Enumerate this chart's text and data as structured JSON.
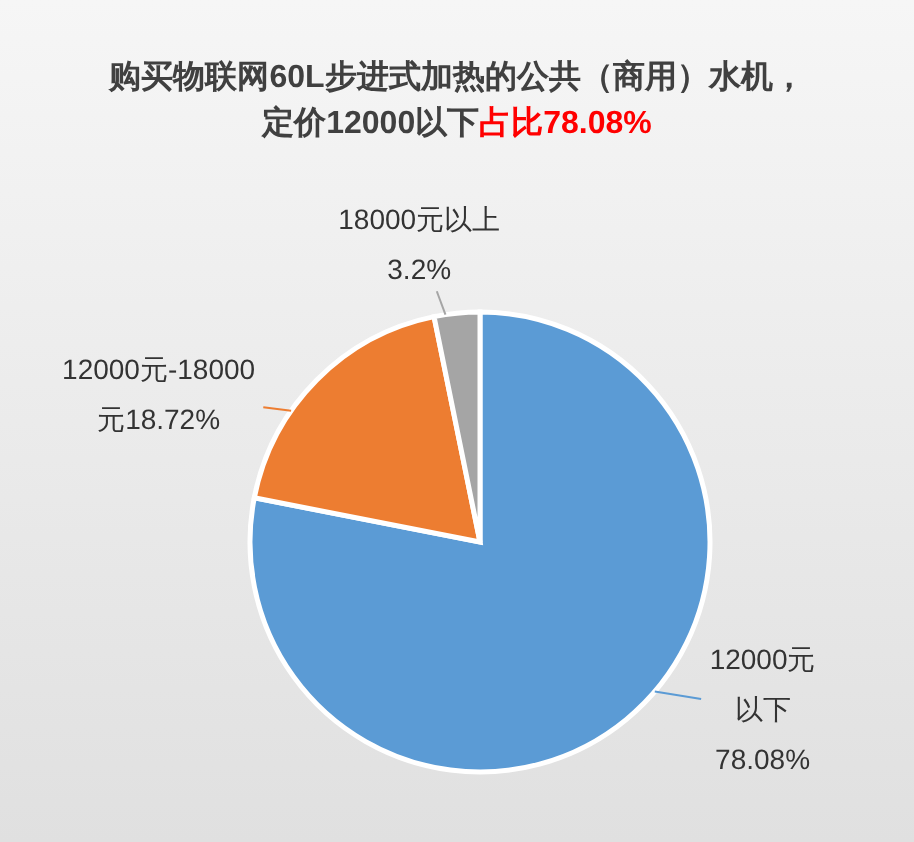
{
  "chart_data": {
    "type": "pie",
    "title": "购买物联网60L步进式加热的公共（商用）水机，",
    "subtitle": "定价12000以下",
    "annotations": [
      "占比78.08%"
    ],
    "categories": [
      "12000元以下",
      "12000元-18000元",
      "18000元以上"
    ],
    "values": [
      78.08,
      18.72,
      3.2
    ],
    "value_labels": [
      "78.08%",
      "18.72%",
      "3.2%"
    ],
    "colors": [
      "#5b9bd5",
      "#ed7d31",
      "#a5a5a5"
    ]
  }
}
